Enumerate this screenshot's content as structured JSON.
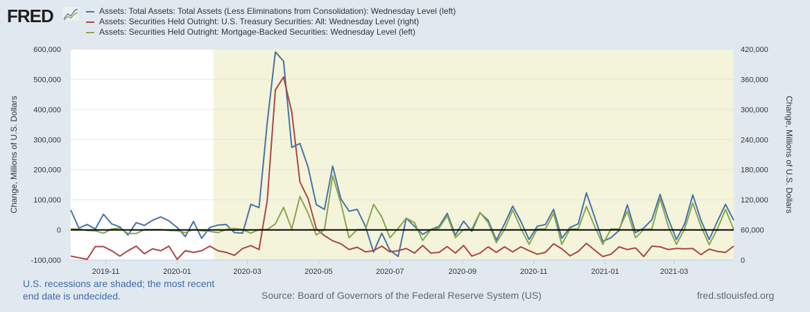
{
  "logo": {
    "text": "FRED"
  },
  "legend": [
    {
      "label": "Assets: Total Assets: Total Assets (Less Eliminations from Consolidation): Wednesday Level (left)",
      "color": "#4572a7"
    },
    {
      "label": "Assets: Securities Held Outright: U.S. Treasury Securities: All: Wednesday Level (right)",
      "color": "#aa4643"
    },
    {
      "label": "Assets: Securities Held Outright: Mortgage-Backed Securities: Wednesday Level (left)",
      "color": "#89a54e"
    }
  ],
  "footer": {
    "recession_line1": "U.S. recessions are shaded; the most recent",
    "recession_line2": "end date is undecided.",
    "source": "Source: Board of Governors of the Federal Reserve System (US)",
    "site": "fred.stlouisfed.org"
  },
  "chart_data": {
    "type": "line",
    "x_start": "2019-10-02",
    "x_end": "2021-04-21",
    "x_step_days": 7,
    "ylabel_left": "Change, Millions of U.S. Dollars",
    "ylabel_right": "Change, Millions of U.S. Dollars",
    "ylim_left": [
      -100000,
      600000
    ],
    "ylim_right": [
      0,
      420000
    ],
    "yticks_left": [
      "-100,000",
      "0",
      "100,000",
      "200,000",
      "300,000",
      "400,000",
      "500,000",
      "600,000"
    ],
    "yticks_right": [
      "0",
      "60,000",
      "120,000",
      "180,000",
      "240,000",
      "300,000",
      "360,000",
      "420,000"
    ],
    "xticks": [
      "2019-11",
      "2020-01",
      "2020-03",
      "2020-05",
      "2020-07",
      "2020-09",
      "2020-11",
      "2021-01",
      "2021-03"
    ],
    "recession": {
      "start": "2020-02-01",
      "end": "2021-04-21"
    },
    "zero_line_left": 0,
    "series": [
      {
        "name": "Total Assets (left)",
        "axis": "left",
        "color": "#4572a7",
        "values": [
          66000,
          6000,
          18000,
          3000,
          52000,
          20000,
          10000,
          -17000,
          24000,
          15000,
          32000,
          43000,
          30000,
          8000,
          -22000,
          28000,
          -28000,
          8000,
          16000,
          18000,
          -9000,
          -11000,
          85000,
          74000,
          355000,
          591000,
          560000,
          274000,
          287000,
          208000,
          84000,
          68000,
          212000,
          103000,
          62000,
          68000,
          12000,
          -74000,
          -11000,
          -68000,
          -88000,
          39000,
          12000,
          -15000,
          1000,
          12000,
          55000,
          -18000,
          29000,
          -5000,
          57000,
          32000,
          -34000,
          20000,
          79000,
          28000,
          -32000,
          12000,
          18000,
          68000,
          -28000,
          8000,
          20000,
          123000,
          43000,
          -38000,
          -26000,
          -2000,
          83000,
          -9000,
          6000,
          34000,
          118000,
          37000,
          -32000,
          20000,
          116000,
          32000,
          -32000,
          28000,
          85000,
          32000
        ]
      },
      {
        "name": "U.S. Treasury Securities (right)",
        "axis": "right",
        "color": "#aa4643",
        "values": [
          7800,
          4600,
          1400,
          26800,
          26800,
          18500,
          7800,
          18500,
          27700,
          12500,
          22200,
          18500,
          27700,
          1400,
          18500,
          15200,
          18500,
          27700,
          18500,
          15200,
          9200,
          23000,
          28600,
          20800,
          117700,
          339000,
          364600,
          295000,
          155500,
          122300,
          62300,
          48500,
          38300,
          32300,
          20800,
          25400,
          16200,
          18500,
          27700,
          16200,
          18500,
          23000,
          13800,
          29000,
          13800,
          15200,
          26800,
          13800,
          29000,
          7800,
          13800,
          26300,
          15200,
          26300,
          16200,
          26300,
          18500,
          11500,
          15200,
          32300,
          22200,
          8300,
          17100,
          33200,
          19800,
          6900,
          11500,
          26300,
          20800,
          24000,
          6900,
          27700,
          26300,
          20800,
          23000,
          22200,
          23000,
          10600,
          21700,
          17100,
          15200,
          27700
        ]
      },
      {
        "name": "Mortgage-Backed Securities (left)",
        "axis": "left",
        "color": "#89a54e",
        "values": [
          3000,
          3000,
          -2000,
          -3000,
          -11000,
          3000,
          6000,
          -12000,
          -12000,
          1000,
          1000,
          1000,
          -2000,
          -3000,
          -9000,
          1000,
          -3000,
          -5000,
          -9000,
          1000,
          5000,
          1000,
          -11000,
          1000,
          1000,
          20000,
          75000,
          3000,
          111000,
          55000,
          -17000,
          1000,
          180000,
          89000,
          -26000,
          1000,
          1000,
          85000,
          43000,
          -26000,
          5000,
          39000,
          24000,
          -35000,
          1000,
          6000,
          47000,
          -26000,
          1000,
          3000,
          58000,
          24000,
          -42000,
          1000,
          66000,
          5000,
          -48000,
          3000,
          3000,
          55000,
          -48000,
          3000,
          3000,
          78000,
          12000,
          -48000,
          3000,
          3000,
          62000,
          -26000,
          1000,
          3000,
          105000,
          12000,
          -48000,
          3000,
          89000,
          12000,
          -49000,
          3000,
          68000,
          1000
        ]
      }
    ]
  }
}
